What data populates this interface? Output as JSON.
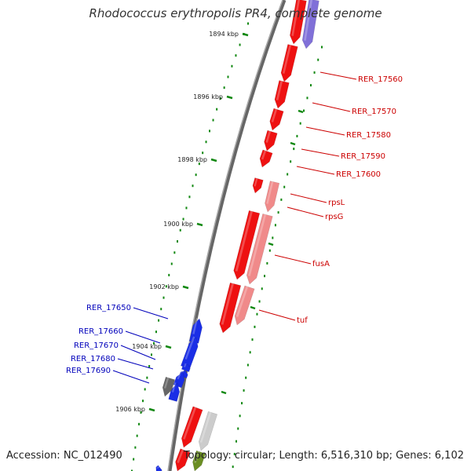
{
  "title": "Rhodococcus erythropolis PR4, complete genome",
  "accession": "Accession: NC_012490",
  "summary": "Topology: circular; Length: 6,516,310 bp; Genes: 6,102",
  "colors": {
    "forward_gene": "#ee1111",
    "rna_like": "#f08a8a",
    "purple": "#8070d8",
    "reverse_gene": "#1a2ee6",
    "grey": "#666666",
    "light_grey": "#cccccc",
    "olive": "#6b8e23",
    "tick_green": "#118811",
    "backbone": "#888888",
    "right_label": "#cc0000",
    "left_label": "#0000bb"
  },
  "ticks": [
    "1894 kbp",
    "1896 kbp",
    "1898 kbp",
    "1900 kbp",
    "1902 kbp",
    "1904 kbp",
    "1906 kbp"
  ],
  "right_labels": [
    "RER_17560",
    "RER_17570",
    "RER_17580",
    "RER_17590",
    "RER_17600",
    "rpsL",
    "rpsG",
    "fusA",
    "tuf"
  ],
  "left_labels": [
    "RER_17650",
    "RER_17660",
    "RER_17670",
    "RER_17680",
    "RER_17690"
  ]
}
